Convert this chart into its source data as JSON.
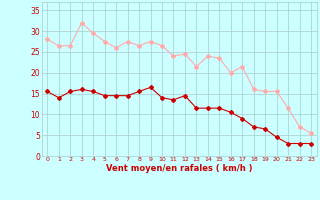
{
  "x": [
    0,
    1,
    2,
    3,
    4,
    5,
    6,
    7,
    8,
    9,
    10,
    11,
    12,
    13,
    14,
    15,
    16,
    17,
    18,
    19,
    20,
    21,
    22,
    23
  ],
  "rafales": [
    28,
    26.5,
    26.5,
    32,
    29.5,
    27.5,
    26,
    27.5,
    26.5,
    27.5,
    26.5,
    24,
    24.5,
    21.5,
    24,
    23.5,
    20,
    21.5,
    16,
    15.5,
    15.5,
    11.5,
    7,
    5.5
  ],
  "moyen": [
    15.5,
    14,
    15.5,
    16,
    15.5,
    14.5,
    14.5,
    14.5,
    15.5,
    16.5,
    14,
    13.5,
    14.5,
    11.5,
    11.5,
    11.5,
    10.5,
    9,
    7,
    6.5,
    4.5,
    3,
    3,
    3
  ],
  "color_rafales": "#ffaaaa",
  "color_moyen": "#cc0000",
  "bg_color": "#ccffff",
  "grid_color": "#aacccc",
  "xlabel": "Vent moyen/en rafales ( km/h )",
  "xlabel_color": "#cc0000",
  "yticks": [
    0,
    5,
    10,
    15,
    20,
    25,
    30,
    35
  ],
  "ylim": [
    0,
    37
  ],
  "xlim": [
    -0.5,
    23.5
  ],
  "arrow_color": "#cc0000",
  "tick_color": "#cc0000"
}
